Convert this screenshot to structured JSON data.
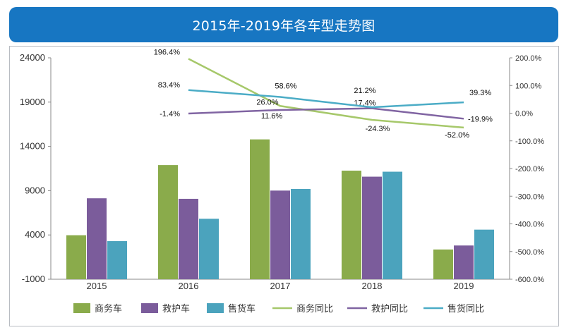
{
  "chart_data": {
    "type": "bar",
    "title": "2015年-2019年各车型走势图",
    "categories": [
      "2015",
      "2016",
      "2017",
      "2018",
      "2019"
    ],
    "y_left": {
      "min": -1000,
      "max": 24000,
      "ticks": [
        "24000",
        "19000",
        "14000",
        "9000",
        "4000",
        "-1000"
      ]
    },
    "y_right": {
      "min": -600,
      "max": 200,
      "ticks": [
        "200.0%",
        "100.0%",
        "0.0%",
        "-100.0%",
        "-200.0%",
        "-300.0%",
        "-400.0%",
        "-500.0%",
        "-600.0%"
      ]
    },
    "bar_series": [
      {
        "name": "商务车",
        "color": "#8aab4b",
        "values": [
          3970,
          11890,
          14790,
          11260,
          2360
        ]
      },
      {
        "name": "救护车",
        "color": "#7b5c9b",
        "values": [
          8140,
          8080,
          9010,
          10580,
          2810
        ]
      },
      {
        "name": "售货车",
        "color": "#4ba3bd",
        "values": [
          3300,
          5830,
          9190,
          11140,
          4600
        ]
      }
    ],
    "line_series": [
      {
        "name": "商务同比",
        "color": "#a6c86a",
        "values": [
          null,
          196.4,
          26.0,
          -24.3,
          -52.0
        ],
        "labels": [
          "",
          "196.4%",
          "26.0%",
          "-24.3%",
          "-52.0%"
        ]
      },
      {
        "name": "救护同比",
        "color": "#8064a2",
        "values": [
          null,
          -1.4,
          11.6,
          17.4,
          -19.9
        ],
        "labels": [
          "",
          "-1.4%",
          "11.6%",
          "17.4%",
          "-19.9%"
        ]
      },
      {
        "name": "售货同比",
        "color": "#4bacc6",
        "values": [
          null,
          83.4,
          58.6,
          21.2,
          39.3
        ],
        "labels": [
          "",
          "83.4%",
          "58.6%",
          "21.2%",
          "39.3%"
        ]
      }
    ],
    "legend_position": "bottom",
    "grid": false
  }
}
